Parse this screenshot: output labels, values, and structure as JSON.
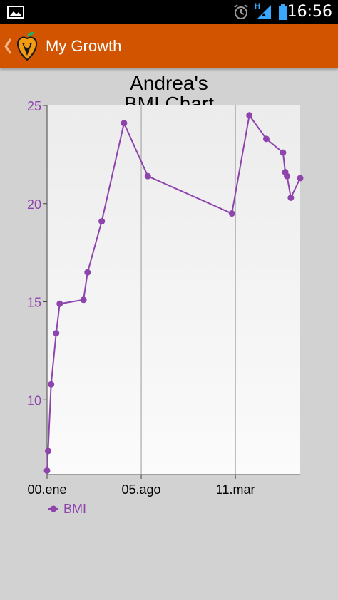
{
  "status_bar": {
    "time": "16:56",
    "network_label": "H",
    "icons": [
      "image-icon",
      "alarm-icon",
      "signal-icon",
      "battery-icon"
    ]
  },
  "action_bar": {
    "title": "My Growth",
    "background": "#d35400",
    "icons": [
      "back-caret-icon",
      "app-logo-icon"
    ]
  },
  "chart_data": {
    "type": "line",
    "title_lines": [
      "Andrea's",
      "BMI Chart"
    ],
    "xlabel": "",
    "ylabel": "",
    "x_tick_labels": [
      "00.ene",
      "05.ago",
      "11.mar"
    ],
    "x_tick_positions": [
      0,
      0.372,
      0.744
    ],
    "y_ticks": [
      10,
      15,
      20,
      25
    ],
    "ylim": [
      6.2,
      25
    ],
    "xlim": [
      0,
      1
    ],
    "grid": "vertical lines at x ticks",
    "legend_position": "bottom-left",
    "series": [
      {
        "name": "BMI",
        "color": "#8e44ad",
        "x": [
          0.0,
          0.004,
          0.016,
          0.036,
          0.05,
          0.144,
          0.16,
          0.216,
          0.304,
          0.398,
          0.73,
          0.799,
          0.866,
          0.932,
          0.941,
          0.948,
          0.963,
          1.0
        ],
        "y": [
          6.4,
          7.4,
          10.8,
          13.4,
          14.9,
          15.1,
          16.5,
          19.1,
          24.1,
          21.4,
          19.5,
          24.5,
          23.3,
          22.6,
          21.6,
          21.4,
          20.3,
          21.3
        ]
      }
    ]
  }
}
